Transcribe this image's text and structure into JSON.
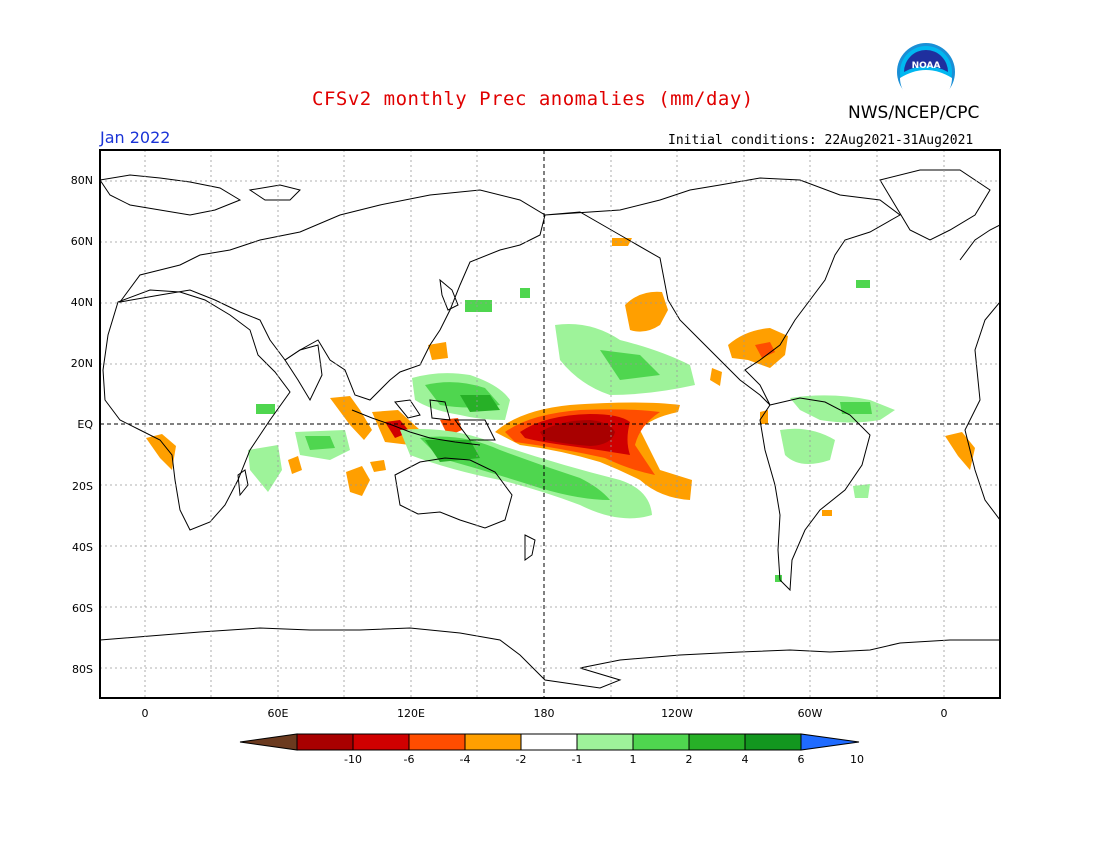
{
  "header": {
    "title": "CFSv2 monthly Prec anomalies (mm/day)",
    "agency": "NWS/NCEP/CPC",
    "logo_text": "NOAA",
    "month": "Jan 2022",
    "initial_conditions": "Initial conditions: 22Aug2021-31Aug2021"
  },
  "axes": {
    "lat_labels": [
      "80N",
      "60N",
      "40N",
      "20N",
      "EQ",
      "20S",
      "40S",
      "60S",
      "80S"
    ],
    "lon_labels": [
      "0",
      "60E",
      "120E",
      "180",
      "120W",
      "60W",
      "0"
    ]
  },
  "colorbar": {
    "labels": [
      "-10",
      "-6",
      "-4",
      "-2",
      "-1",
      "1",
      "2",
      "4",
      "6",
      "10"
    ],
    "colors": [
      "#6b3a1f",
      "#a80000",
      "#d00000",
      "#ff4d00",
      "#ff9f00",
      "#ffffff",
      "#9ef39a",
      "#4fd64f",
      "#27b027",
      "#12961f",
      "#1f6bff"
    ]
  },
  "colors": {
    "map_border": "#000000",
    "title": "#e00000",
    "month": "#1a33d6",
    "gridline": "#999999"
  }
}
